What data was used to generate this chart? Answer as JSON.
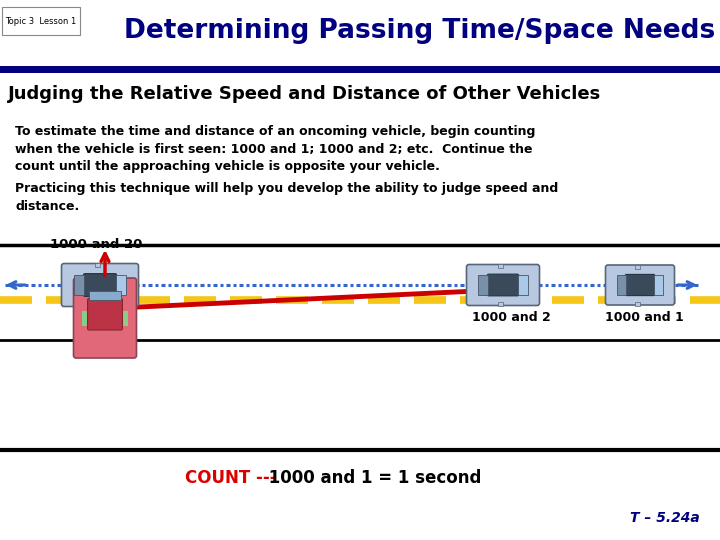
{
  "title": "Determining Passing Time/Space Needs",
  "topic_label": "Topic 3  Lesson 1",
  "subtitle": "Judging the Relative Speed and Distance of Other Vehicles",
  "para1": "To estimate the time and distance of an oncoming vehicle, begin counting\nwhen the vehicle is first seen: 1000 and 1; 1000 and 2; etc.  Continue the\ncount until the approaching vehicle is opposite your vehicle.",
  "para2": "Practicing this technique will help you develop the ability to judge speed and\ndistance.",
  "label_left": "1000 and 20",
  "label_mid": "1000 and 2",
  "label_right": "1000 and 1",
  "count_red": "COUNT ---",
  "count_black": " 1000 and 1 = 1 second",
  "footer": "T – 5.24a",
  "header_bg": "#c8cce8",
  "header_text_color": "#000080",
  "body_bg": "#ffffff",
  "road_line_color": "#f5c518",
  "count_red_color": "#dd0000",
  "footer_color": "#000080",
  "blue_arrow_color": "#3366cc",
  "red_arrow_color": "#cc0000"
}
